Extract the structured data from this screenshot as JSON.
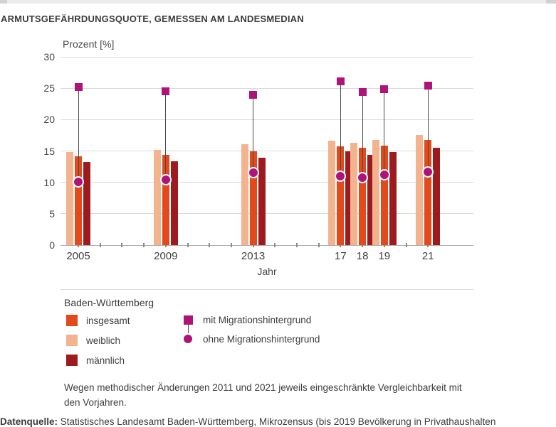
{
  "page": {
    "title": "ARMUTSGEFÄHRDUNGSQUOTE, GEMESSEN AM LANDESMEDIAN",
    "footnote_lines": [
      "Wegen methodischer Änderungen 2011 und 2021 jeweils eingeschränkte Vergleichbarkeit mit",
      "den Vorjahren."
    ],
    "source_label": "Datenquelle:",
    "source_text": " Statistisches Landesamt Baden-Württemberg, Mikrozensus (bis 2019 Bevölkerung in Privathaushalten"
  },
  "legend": {
    "region_label": "Baden-Württemberg",
    "bar_items": [
      {
        "label": "insgesamt",
        "color": "#e2491b"
      },
      {
        "label": "weiblich",
        "color": "#f4b38f"
      },
      {
        "label": "männlich",
        "color": "#9d1b1f"
      }
    ],
    "marker_items": [
      {
        "label": "mit Migrationshintergrund",
        "shape": "square",
        "color": "#ae1378"
      },
      {
        "label": "ohne Migrationshintergrund",
        "shape": "circle",
        "color": "#ae1378"
      }
    ]
  },
  "chart_data": {
    "type": "bar",
    "title": "ARMUTSGEFÄHRDUNGSQUOTE, GEMESSEN AM LANDESMEDIAN",
    "y_axis_title": "Prozent [%]",
    "x_axis_label": "Jahr",
    "ylim": [
      0,
      30
    ],
    "y_ticks": [
      0,
      5,
      10,
      15,
      20,
      25,
      30
    ],
    "grid": true,
    "categories": [
      "2005",
      "2009",
      "2013",
      "17",
      "18",
      "19",
      "21"
    ],
    "years": [
      2005,
      2009,
      2013,
      2017,
      2018,
      2019,
      2021
    ],
    "axis_year_ticks_range": [
      2005,
      2021
    ],
    "series": [
      {
        "name": "weiblich",
        "type": "bar",
        "color": "#f4b38f",
        "values": [
          14.8,
          15.2,
          16.1,
          16.6,
          16.3,
          16.7,
          17.6
        ]
      },
      {
        "name": "insgesamt",
        "type": "bar",
        "color": "#e2491b",
        "values": [
          14.1,
          14.4,
          15.0,
          15.7,
          15.5,
          15.9,
          16.8
        ]
      },
      {
        "name": "männlich",
        "type": "bar",
        "color": "#9d1b1f",
        "values": [
          13.2,
          13.4,
          13.9,
          14.9,
          14.4,
          14.8,
          15.5
        ]
      },
      {
        "name": "mit Migrationshintergrund",
        "type": "marker-square",
        "color": "#ae1378",
        "values": [
          25.2,
          24.5,
          23.9,
          26.1,
          24.4,
          24.8,
          25.4
        ]
      },
      {
        "name": "ohne Migrationshintergrund",
        "type": "marker-circle",
        "color": "#ae1378",
        "values": [
          10.1,
          10.4,
          11.5,
          11.0,
          10.8,
          11.2,
          11.7
        ]
      }
    ]
  }
}
